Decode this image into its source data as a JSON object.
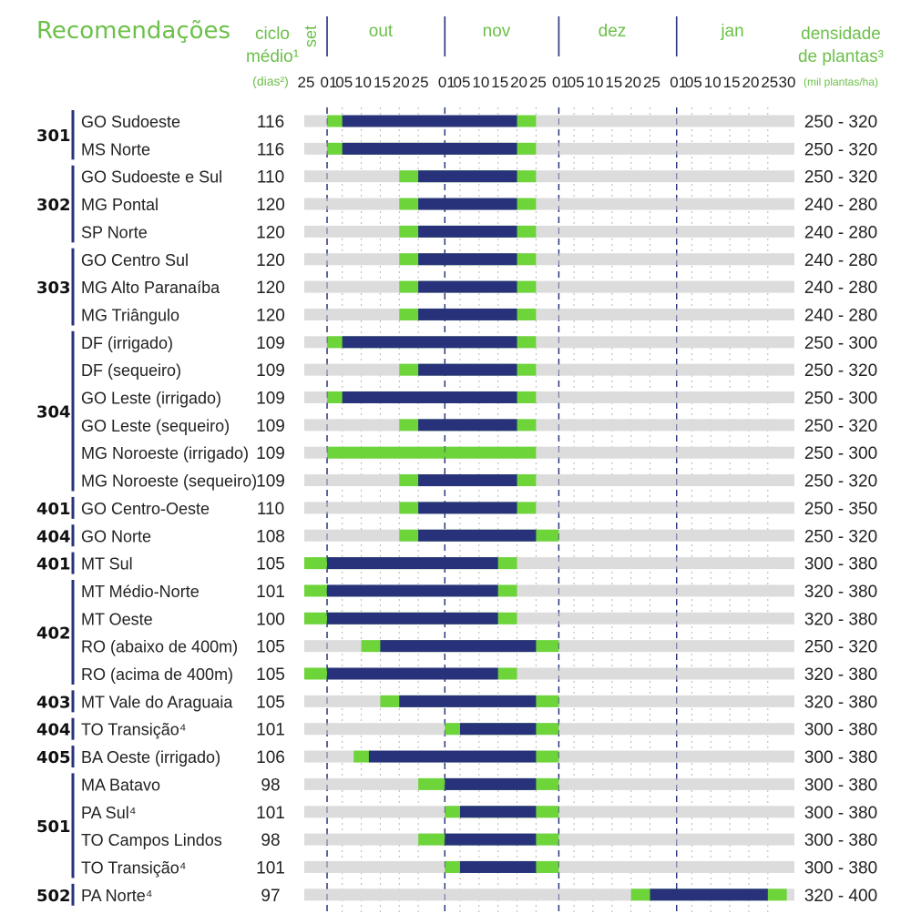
{
  "header": {
    "title": "Recomendações",
    "ciclo": [
      "ciclo",
      "médio¹",
      "(dias²)"
    ],
    "densidade": [
      "densidade",
      "de plantas³",
      "(mil plantas/ha)"
    ],
    "months": [
      "set",
      "out",
      "nov",
      "dez",
      "jan"
    ],
    "ticks": [
      "25",
      "01",
      "05",
      "10",
      "15",
      "20",
      "25",
      "01",
      "05",
      "10",
      "15",
      "20",
      "25",
      "01",
      "05",
      "10",
      "15",
      "20",
      "25",
      "01",
      "05",
      "10",
      "15",
      "20",
      "25",
      "30"
    ]
  },
  "colors": {
    "title_green": "#6cc04a",
    "navy": "#27327a",
    "bar_green": "#6dd43a",
    "bar_gray": "#dcdcdc",
    "text": "#222222"
  },
  "chart_data": {
    "type": "gantt",
    "timeline_ticks": [
      "25",
      "01",
      "05",
      "10",
      "15",
      "20",
      "25",
      "01",
      "05",
      "10",
      "15",
      "20",
      "25",
      "01",
      "05",
      "10",
      "15",
      "20",
      "25",
      "01",
      "05",
      "10",
      "15",
      "20",
      "25",
      "30"
    ],
    "groups": [
      {
        "code": "301",
        "rows": [
          {
            "region": "GO Sudoeste",
            "ciclo": "116",
            "densidade": "250 - 320",
            "green_start": "01/out",
            "navy_start": "05/out",
            "navy_end": "20/nov",
            "green_end": "25/nov"
          },
          {
            "region": "MS Norte",
            "ciclo": "116",
            "densidade": "250 - 320",
            "green_start": "01/out",
            "navy_start": "05/out",
            "navy_end": "20/nov",
            "green_end": "25/nov"
          }
        ]
      },
      {
        "code": "302",
        "rows": [
          {
            "region": "GO Sudoeste e Sul",
            "ciclo": "110",
            "densidade": "250 - 320",
            "green_start": "20/out",
            "navy_start": "25/out",
            "navy_end": "20/nov",
            "green_end": "25/nov"
          },
          {
            "region": "MG Pontal",
            "ciclo": "120",
            "densidade": "240 - 280",
            "green_start": "20/out",
            "navy_start": "25/out",
            "navy_end": "20/nov",
            "green_end": "25/nov"
          },
          {
            "region": "SP Norte",
            "ciclo": "120",
            "densidade": "240 - 280",
            "green_start": "20/out",
            "navy_start": "25/out",
            "navy_end": "20/nov",
            "green_end": "25/nov"
          }
        ]
      },
      {
        "code": "303",
        "rows": [
          {
            "region": "GO Centro Sul",
            "ciclo": "120",
            "densidade": "240 - 280",
            "green_start": "20/out",
            "navy_start": "25/out",
            "navy_end": "20/nov",
            "green_end": "25/nov"
          },
          {
            "region": "MG Alto Paranaíba",
            "ciclo": "120",
            "densidade": "240 - 280",
            "green_start": "20/out",
            "navy_start": "25/out",
            "navy_end": "20/nov",
            "green_end": "25/nov"
          },
          {
            "region": "MG Triângulo",
            "ciclo": "120",
            "densidade": "240 - 280",
            "green_start": "20/out",
            "navy_start": "25/out",
            "navy_end": "20/nov",
            "green_end": "25/nov"
          }
        ]
      },
      {
        "code": "304",
        "rows": [
          {
            "region": "DF (irrigado)",
            "ciclo": "109",
            "densidade": "250 - 300",
            "green_start": "01/out",
            "navy_start": "05/out",
            "navy_end": "20/nov",
            "green_end": "25/nov"
          },
          {
            "region": "DF (sequeiro)",
            "ciclo": "109",
            "densidade": "250 - 320",
            "green_start": "20/out",
            "navy_start": "25/out",
            "navy_end": "20/nov",
            "green_end": "25/nov"
          },
          {
            "region": "GO Leste (irrigado)",
            "ciclo": "109",
            "densidade": "250 - 300",
            "green_start": "01/out",
            "navy_start": "05/out",
            "navy_end": "20/nov",
            "green_end": "25/nov"
          },
          {
            "region": "GO Leste (sequeiro)",
            "ciclo": "109",
            "densidade": "250 - 320",
            "green_start": "20/out",
            "navy_start": "25/out",
            "navy_end": "20/nov",
            "green_end": "25/nov"
          },
          {
            "region": "MG Noroeste (irrigado)",
            "ciclo": "109",
            "densidade": "250 - 300",
            "green_start": "01/out",
            "green_end": "25/nov"
          },
          {
            "region": "MG Noroeste (sequeiro)",
            "ciclo": "109",
            "densidade": "250 - 320",
            "green_start": "20/out",
            "navy_start": "25/out",
            "navy_end": "20/nov",
            "green_end": "25/nov"
          }
        ]
      },
      {
        "code": "401",
        "rows": [
          {
            "region": "GO Centro-Oeste",
            "ciclo": "110",
            "densidade": "250 - 350",
            "green_start": "20/out",
            "navy_start": "25/out",
            "navy_end": "20/nov",
            "green_end": "25/nov"
          }
        ]
      },
      {
        "code": "404",
        "rows": [
          {
            "region": "GO Norte",
            "ciclo": "108",
            "densidade": "250 - 320",
            "green_start": "20/out",
            "navy_start": "25/out",
            "navy_end": "25/nov",
            "green_end": "01/dez"
          }
        ]
      },
      {
        "code": "401",
        "rows": [
          {
            "region": "MT Sul",
            "ciclo": "105",
            "densidade": "300 - 380",
            "green_start": "25/set",
            "navy_start": "01/out",
            "navy_end": "15/nov",
            "green_end": "20/nov"
          }
        ]
      },
      {
        "code": "402",
        "rows": [
          {
            "region": "MT Médio-Norte",
            "ciclo": "101",
            "densidade": "320 - 380",
            "green_start": "25/set",
            "navy_start": "01/out",
            "navy_end": "15/nov",
            "green_end": "20/nov"
          },
          {
            "region": "MT Oeste",
            "ciclo": "100",
            "densidade": "320 - 380",
            "green_start": "25/set",
            "navy_start": "01/out",
            "navy_end": "15/nov",
            "green_end": "20/nov"
          },
          {
            "region": "RO (abaixo de 400m)",
            "ciclo": "105",
            "densidade": "250 - 320",
            "green_start": "10/out",
            "navy_start": "15/out",
            "navy_end": "25/nov",
            "green_end": "01/dez"
          },
          {
            "region": "RO (acima de 400m)",
            "ciclo": "105",
            "densidade": "320 - 380",
            "green_start": "25/set",
            "navy_start": "01/out",
            "navy_end": "15/nov",
            "green_end": "20/nov"
          }
        ]
      },
      {
        "code": "403",
        "rows": [
          {
            "region": "MT Vale do Araguaia",
            "ciclo": "105",
            "densidade": "320 - 380",
            "green_start": "15/out",
            "navy_start": "20/out",
            "navy_end": "25/nov",
            "green_end": "01/dez"
          }
        ]
      },
      {
        "code": "404",
        "rows": [
          {
            "region": "TO Transição⁴",
            "ciclo": "101",
            "densidade": "300 - 380",
            "green_start": "01/nov",
            "navy_start": "05/nov",
            "navy_end": "25/nov",
            "green_end": "01/dez"
          }
        ]
      },
      {
        "code": "405",
        "rows": [
          {
            "region": "BA Oeste (irrigado)",
            "ciclo": "106",
            "densidade": "300 - 380",
            "green_start": "08/out",
            "navy_start": "12/out",
            "navy_end": "25/nov",
            "green_end": "01/dez"
          }
        ]
      },
      {
        "code": "501",
        "rows": [
          {
            "region": "MA Batavo",
            "ciclo": "98",
            "densidade": "300 - 380",
            "green_start": "25/out",
            "navy_start": "01/nov",
            "navy_end": "25/nov",
            "green_end": "01/dez"
          },
          {
            "region": "PA Sul⁴",
            "ciclo": "101",
            "densidade": "300 - 380",
            "green_start": "01/nov",
            "navy_start": "05/nov",
            "navy_end": "25/nov",
            "green_end": "01/dez"
          },
          {
            "region": "TO Campos Lindos",
            "ciclo": "98",
            "densidade": "300 - 380",
            "green_start": "25/out",
            "navy_start": "01/nov",
            "navy_end": "25/nov",
            "green_end": "01/dez"
          },
          {
            "region": "TO Transição⁴",
            "ciclo": "101",
            "densidade": "300 - 380",
            "green_start": "01/nov",
            "navy_start": "05/nov",
            "navy_end": "25/nov",
            "green_end": "01/dez"
          }
        ]
      },
      {
        "code": "502",
        "rows": [
          {
            "region": "PA Norte⁴",
            "ciclo": "97",
            "densidade": "320 - 400",
            "green_start": "20/dez",
            "navy_start": "25/dez",
            "navy_end": "25/jan",
            "green_end": "30/jan"
          }
        ]
      }
    ]
  }
}
